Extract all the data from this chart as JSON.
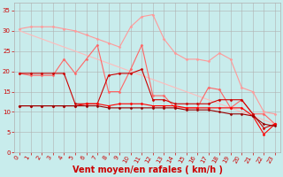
{
  "xlabel": "Vent moyen/en rafales ( km/h )",
  "background_color": "#c8ecec",
  "grid_color": "#b0b0b0",
  "xlim": [
    -0.5,
    23.5
  ],
  "ylim": [
    0,
    37
  ],
  "xticks": [
    0,
    1,
    2,
    3,
    4,
    5,
    6,
    7,
    8,
    9,
    10,
    11,
    12,
    13,
    14,
    15,
    16,
    17,
    18,
    19,
    20,
    21,
    22,
    23
  ],
  "yticks": [
    0,
    5,
    10,
    15,
    20,
    25,
    30,
    35
  ],
  "series": [
    {
      "x": [
        0,
        1,
        2,
        3,
        4,
        5,
        6,
        7,
        8,
        9,
        10,
        11,
        12,
        13,
        14,
        15,
        16,
        17,
        18,
        19,
        20,
        21,
        22,
        23
      ],
      "y": [
        30.5,
        31,
        31,
        31,
        30.5,
        30,
        29,
        28,
        27,
        26,
        31,
        33.5,
        34,
        28,
        24.5,
        23,
        23,
        22.5,
        24.5,
        23,
        16,
        15,
        10,
        9.5
      ],
      "color": "#ff9999",
      "lw": 0.8,
      "marker": "D",
      "ms": 1.5
    },
    {
      "x": [
        0,
        1,
        2,
        3,
        4,
        5,
        6,
        7,
        8,
        9,
        10,
        11,
        12,
        13,
        14,
        15,
        16,
        17,
        18,
        19,
        20,
        21,
        22,
        23
      ],
      "y": [
        30,
        29,
        28,
        27,
        26,
        25,
        24,
        23,
        22,
        21,
        20,
        19,
        18,
        17,
        16,
        15,
        14,
        13,
        12,
        11,
        10,
        9,
        8,
        7
      ],
      "color": "#ffbbbb",
      "lw": 0.8,
      "marker": null,
      "ms": 0
    },
    {
      "x": [
        0,
        1,
        2,
        3,
        4,
        5,
        6,
        7,
        8,
        9,
        10,
        11,
        12,
        13,
        14,
        15,
        16,
        17,
        18,
        19,
        20,
        21,
        22,
        23
      ],
      "y": [
        19.5,
        19,
        19,
        19,
        23,
        19.5,
        23,
        26.5,
        15,
        15,
        20.5,
        26.5,
        14,
        14,
        11,
        11,
        11,
        16,
        15.5,
        11,
        13,
        9.5,
        9.5,
        7
      ],
      "color": "#ff6666",
      "lw": 0.8,
      "marker": "D",
      "ms": 1.5
    },
    {
      "x": [
        0,
        1,
        2,
        3,
        4,
        5,
        6,
        7,
        8,
        9,
        10,
        11,
        12,
        13,
        14,
        15,
        16,
        17,
        18,
        19,
        20,
        21,
        22,
        23
      ],
      "y": [
        19.5,
        19.5,
        19.5,
        19.5,
        19.5,
        12,
        12,
        12,
        19,
        19.5,
        19.5,
        20.5,
        13,
        13,
        12,
        12,
        12,
        12,
        13,
        13,
        13,
        9.5,
        6,
        7
      ],
      "color": "#cc0000",
      "lw": 0.8,
      "marker": "D",
      "ms": 1.5
    },
    {
      "x": [
        0,
        1,
        2,
        3,
        4,
        5,
        6,
        7,
        8,
        9,
        10,
        11,
        12,
        13,
        14,
        15,
        16,
        17,
        18,
        19,
        20,
        21,
        22,
        23
      ],
      "y": [
        11.5,
        11.5,
        11.5,
        11.5,
        11.5,
        11.5,
        12,
        12,
        11.5,
        12,
        12,
        12,
        11.5,
        11.5,
        11.5,
        11,
        11,
        11,
        11,
        11,
        11,
        9,
        4.5,
        7
      ],
      "color": "#ff0000",
      "lw": 0.8,
      "marker": "D",
      "ms": 1.5
    },
    {
      "x": [
        0,
        1,
        2,
        3,
        4,
        5,
        6,
        7,
        8,
        9,
        10,
        11,
        12,
        13,
        14,
        15,
        16,
        17,
        18,
        19,
        20,
        21,
        22,
        23
      ],
      "y": [
        11.5,
        11.5,
        11.5,
        11.5,
        11.5,
        11.5,
        11.5,
        11.5,
        11,
        11,
        11,
        11,
        11,
        11,
        11,
        10.5,
        10.5,
        10.5,
        10,
        9.5,
        9.5,
        9,
        7,
        6.5
      ],
      "color": "#990000",
      "lw": 0.8,
      "marker": "D",
      "ms": 1.5
    }
  ],
  "tick_label_fontsize": 5,
  "xlabel_fontsize": 7,
  "tick_color": "#cc0000",
  "xlabel_color": "#cc0000",
  "xlabel_fontweight": "bold"
}
